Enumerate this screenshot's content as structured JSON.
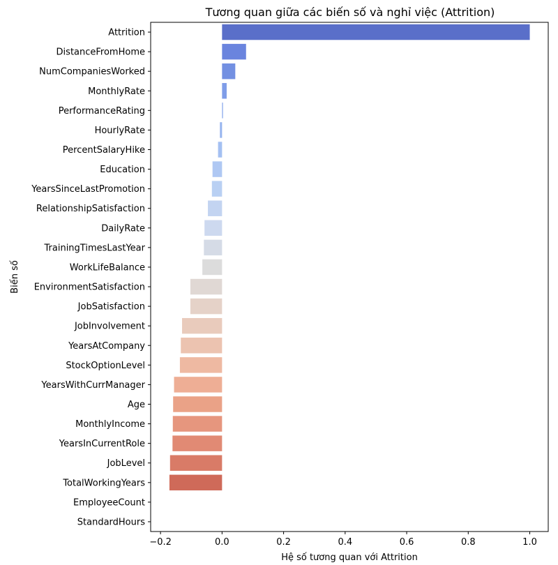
{
  "chart_data": {
    "type": "bar",
    "orientation": "horizontal",
    "title": "Tương quan giữa các biến số và nghỉ việc (Attrition)",
    "xlabel": "Hệ số tương quan với Attrition",
    "ylabel": "Biến số",
    "xlim": [
      -0.232,
      1.06
    ],
    "xticks": [
      -0.2,
      0.0,
      0.2,
      0.4,
      0.6,
      0.8,
      1.0
    ],
    "xtick_labels": [
      "−0.2",
      "0.0",
      "0.2",
      "0.4",
      "0.6",
      "0.8",
      "1.0"
    ],
    "grid": false,
    "palette": "coolwarm",
    "categories": [
      "Attrition",
      "DistanceFromHome",
      "NumCompaniesWorked",
      "MonthlyRate",
      "PerformanceRating",
      "HourlyRate",
      "PercentSalaryHike",
      "Education",
      "YearsSinceLastPromotion",
      "RelationshipSatisfaction",
      "DailyRate",
      "TrainingTimesLastYear",
      "WorkLifeBalance",
      "EnvironmentSatisfaction",
      "JobSatisfaction",
      "JobInvolvement",
      "YearsAtCompany",
      "StockOptionLevel",
      "YearsWithCurrManager",
      "Age",
      "MonthlyIncome",
      "YearsInCurrentRole",
      "JobLevel",
      "TotalWorkingYears",
      "EmployeeCount",
      "StandardHours"
    ],
    "values": [
      1.0,
      0.078,
      0.043,
      0.015,
      0.003,
      -0.007,
      -0.013,
      -0.031,
      -0.033,
      -0.046,
      -0.057,
      -0.059,
      -0.064,
      -0.103,
      -0.103,
      -0.13,
      -0.134,
      -0.137,
      -0.156,
      -0.159,
      -0.16,
      -0.161,
      -0.169,
      -0.171,
      null,
      null
    ],
    "colors": [
      "#5a6fc9",
      "#6a84de",
      "#7390e2",
      "#7f9de8",
      "#8caaec",
      "#97b5ef",
      "#a4c0f2",
      "#afc8f3",
      "#b9d0f3",
      "#c3d4f1",
      "#cdd9ef",
      "#d5dbe6",
      "#dcdcdc",
      "#e0d8d4",
      "#e5d2c8",
      "#e9cbbc",
      "#ecc3b0",
      "#eeb9a2",
      "#eeae95",
      "#eaa287",
      "#e6967e",
      "#e18a74",
      "#d97b67",
      "#cf6a59",
      "#c4574c",
      "#b40426"
    ]
  }
}
